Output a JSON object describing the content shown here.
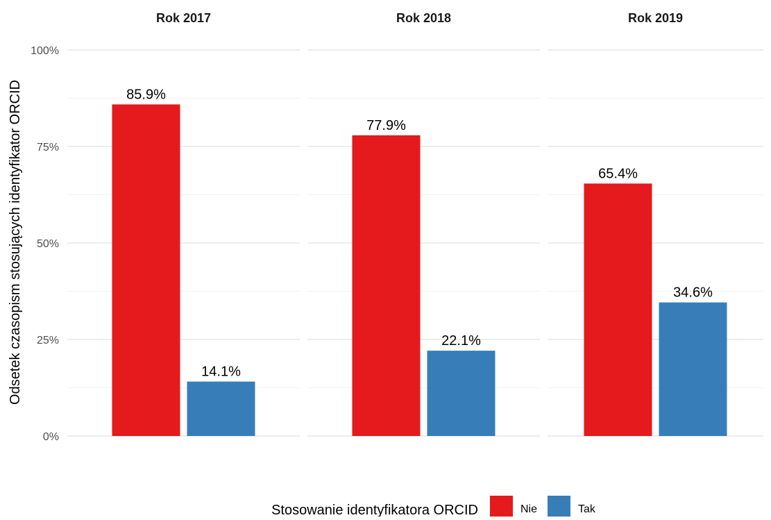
{
  "chart_data": {
    "type": "bar",
    "ylabel": "Odsetek czasopism stosujących identyfikator ORCID",
    "ylim": [
      0,
      100
    ],
    "y_ticks": [
      {
        "value": 0,
        "label": "0%"
      },
      {
        "value": 25,
        "label": "25%"
      },
      {
        "value": 50,
        "label": "50%"
      },
      {
        "value": 75,
        "label": "75%"
      },
      {
        "value": 100,
        "label": "100%"
      }
    ],
    "grid": true,
    "legend": {
      "title": "Stosowanie identyfikatora ORCID",
      "position": "bottom"
    },
    "series": [
      {
        "name": "Nie",
        "color": "#E41A1C"
      },
      {
        "name": "Tak",
        "color": "#377EB8"
      }
    ],
    "facets": [
      {
        "title": "Rok 2017",
        "values": [
          85.9,
          14.1
        ],
        "labels": [
          "85.9%",
          "14.1%"
        ]
      },
      {
        "title": "Rok 2018",
        "values": [
          77.9,
          22.1
        ],
        "labels": [
          "77.9%",
          "22.1%"
        ]
      },
      {
        "title": "Rok 2019",
        "values": [
          65.4,
          34.6
        ],
        "labels": [
          "65.4%",
          "34.6%"
        ]
      }
    ]
  }
}
